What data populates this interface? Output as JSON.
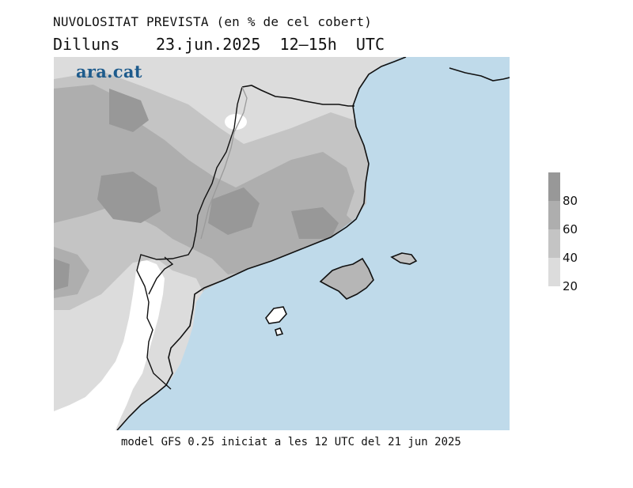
{
  "header": {
    "title": "NUVOLOSITAT PREVISTA (en % de cel cobert)",
    "day": "Dilluns",
    "datetime": "23.jun.2025  12–15h  UTC"
  },
  "logo": {
    "text": "ara.cat",
    "color": "#1e5b8c"
  },
  "legend": {
    "levels": [
      {
        "value": 20,
        "color": "#dcdcdc"
      },
      {
        "value": 40,
        "color": "#c4c4c4"
      },
      {
        "value": 60,
        "color": "#aeaeae"
      },
      {
        "value": 80,
        "color": "#989898"
      }
    ],
    "labels": [
      "80",
      "60",
      "40",
      "20"
    ]
  },
  "map": {
    "sea_color": "#bfdaea",
    "land_clear_color": "#ffffff",
    "coastline_color": "#111111",
    "border_color": "#9a9a9a"
  },
  "footer": {
    "text": "model GFS 0.25 iniciat a les 12 UTC del 21 jun 2025"
  }
}
